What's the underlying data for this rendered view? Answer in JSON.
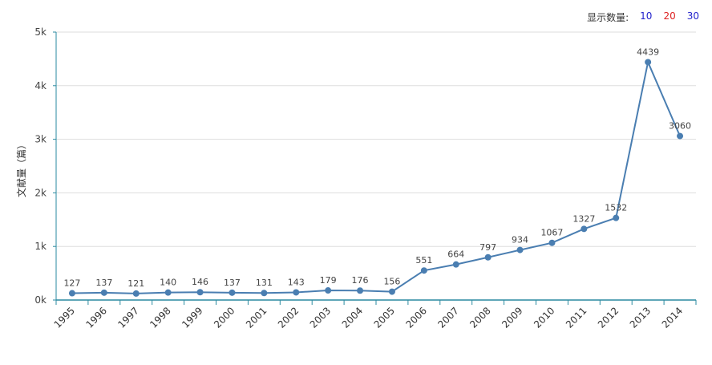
{
  "controls": {
    "count_label": "显示数量:",
    "count_options": [
      "10",
      "20",
      "30"
    ]
  },
  "chart_data": {
    "type": "line",
    "ylabel": "文献量（篇）",
    "ylim": [
      0,
      5000
    ],
    "yticks": [
      0,
      1000,
      2000,
      3000,
      4000,
      5000
    ],
    "ytick_labels": [
      "0k",
      "1k",
      "2k",
      "3k",
      "4k",
      "5k"
    ],
    "grid": true,
    "categories": [
      "1995",
      "1996",
      "1997",
      "1998",
      "1999",
      "2000",
      "2001",
      "2002",
      "2003",
      "2004",
      "2005",
      "2006",
      "2007",
      "2008",
      "2009",
      "2010",
      "2011",
      "2012",
      "2013",
      "2014"
    ],
    "values": [
      127,
      137,
      121,
      140,
      146,
      137,
      131,
      143,
      179,
      176,
      156,
      551,
      664,
      797,
      934,
      1067,
      1327,
      1532,
      4439,
      3060
    ],
    "line_color": "#4a7eb1",
    "axis_color": "#2a8aa0"
  }
}
